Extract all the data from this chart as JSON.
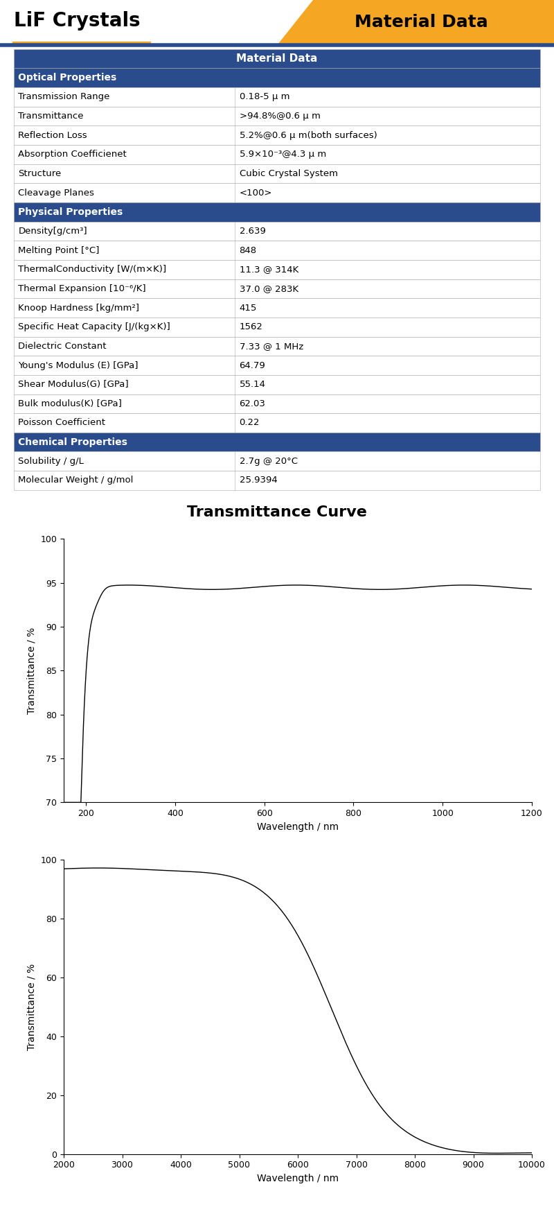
{
  "title_left": "LiF Crystals",
  "title_right": "Material Data",
  "header_color": "#2B4C8C",
  "orange_color": "#F5A623",
  "table_title": "Material Data",
  "sections": [
    {
      "name": "Optical Properties",
      "rows": [
        [
          "Transmission Range",
          "0.18-5 μ m"
        ],
        [
          "Transmittance",
          ">94.8%@0.6 μ m"
        ],
        [
          "Reflection Loss",
          "5.2%@0.6 μ m(both surfaces)"
        ],
        [
          "Absorption Coefficienet",
          "5.9×10⁻³@4.3 μ m"
        ],
        [
          "Structure",
          "Cubic Crystal System"
        ],
        [
          "Cleavage Planes",
          "<100>"
        ]
      ]
    },
    {
      "name": "Physical Properties",
      "rows": [
        [
          "Density[g/cm³]",
          "2.639"
        ],
        [
          "Melting Point [°C]",
          "848"
        ],
        [
          "ThermalConductivity [W/(m×K)]",
          "11.3 @ 314K"
        ],
        [
          "Thermal Expansion [10⁻⁶/K]",
          "37.0 @ 283K"
        ],
        [
          "Knoop Hardness [kg/mm²]",
          "415"
        ],
        [
          "Specific Heat Capacity [J/(kg×K)]",
          "1562"
        ],
        [
          "Dielectric Constant",
          "7.33 @ 1 MHz"
        ],
        [
          "Young's Modulus (E) [GPa]",
          "64.79"
        ],
        [
          "Shear Modulus(G) [GPa]",
          "55.14"
        ],
        [
          "Bulk modulus(K) [GPa]",
          "62.03"
        ],
        [
          "Poisson Coefficient",
          "0.22"
        ]
      ]
    },
    {
      "name": "Chemical Properties",
      "rows": [
        [
          "Solubility / g/L",
          "2.7g @ 20°C"
        ],
        [
          "Molecular Weight / g/mol",
          "25.9394"
        ]
      ]
    }
  ],
  "curve_title": "Transmittance Curve",
  "curve1": {
    "xlabel": "Wavelength / nm",
    "ylabel": "Transmittance / %",
    "xlim": [
      150,
      1200
    ],
    "ylim": [
      70,
      100
    ],
    "xticks": [
      200,
      400,
      600,
      800,
      1000,
      1200
    ],
    "yticks": [
      70,
      75,
      80,
      85,
      90,
      95,
      100
    ]
  },
  "curve2": {
    "xlabel": "Wavelength / nm",
    "ylabel": "Transmittance / %",
    "xlim": [
      2000,
      10000
    ],
    "ylim": [
      0,
      100
    ],
    "xticks": [
      2000,
      3000,
      4000,
      5000,
      6000,
      7000,
      8000,
      9000,
      10000
    ],
    "yticks": [
      0,
      20,
      40,
      60,
      80,
      100
    ]
  }
}
